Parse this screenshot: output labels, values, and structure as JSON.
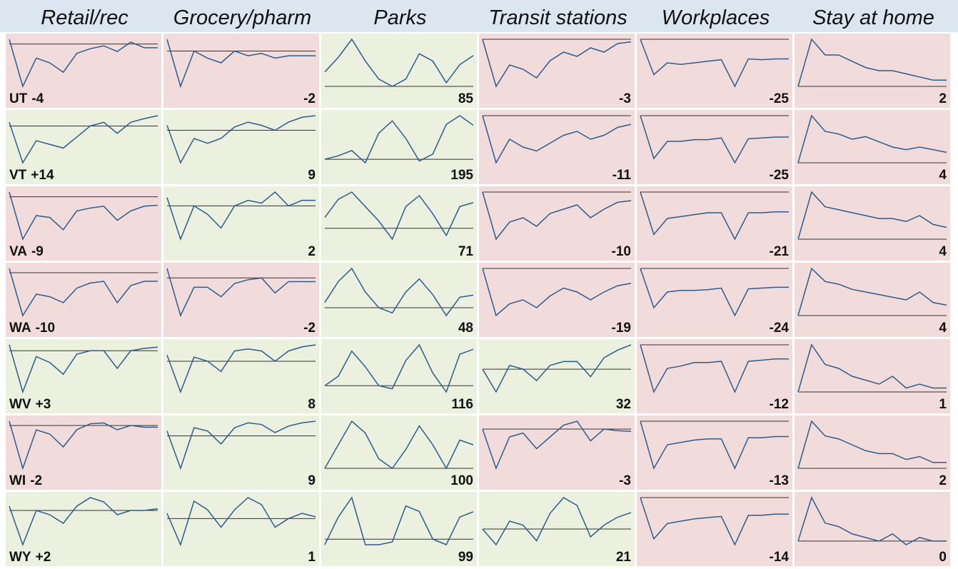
{
  "headers": [
    "Retail/rec",
    "Grocery/pharm",
    "Parks",
    "Transit stations",
    "Workplaces",
    "Stay at home"
  ],
  "rows": [
    {
      "state": "UT",
      "cells": [
        {
          "value": -4,
          "color": "#f2dcdb",
          "trend": [
            5,
            -45,
            -15,
            -20,
            -30,
            -10,
            -5,
            -2,
            -8,
            2,
            -4,
            -4
          ]
        },
        {
          "value": -2,
          "color": "#f2dcdb",
          "trend": [
            5,
            -15,
            0,
            -3,
            -5,
            0,
            -2,
            -1,
            -3,
            -2,
            -2,
            -2
          ]
        },
        {
          "value": 85,
          "color": "#ebf1de",
          "trend": [
            40,
            80,
            130,
            70,
            20,
            0,
            20,
            90,
            70,
            10,
            60,
            85
          ]
        },
        {
          "value": -3,
          "color": "#f2dcdb",
          "trend": [
            0,
            -55,
            -30,
            -35,
            -45,
            -25,
            -15,
            -20,
            -10,
            -15,
            -5,
            -3
          ]
        },
        {
          "value": -25,
          "color": "#f2dcdb",
          "trend": [
            0,
            -45,
            -30,
            -32,
            -30,
            -28,
            -26,
            -60,
            -25,
            -26,
            -25,
            -25
          ]
        },
        {
          "value": 2,
          "color": "#f2dcdb",
          "trend": [
            0,
            15,
            10,
            10,
            8,
            6,
            5,
            5,
            4,
            3,
            2,
            2
          ]
        }
      ]
    },
    {
      "state": "VT",
      "cells": [
        {
          "value": 14,
          "label": "+14",
          "color": "#ebf1de",
          "trend": [
            5,
            -50,
            -20,
            -25,
            -30,
            -15,
            0,
            5,
            -10,
            5,
            10,
            14
          ]
        },
        {
          "value": 9,
          "color": "#ebf1de",
          "trend": [
            3,
            -20,
            -5,
            -8,
            -5,
            2,
            5,
            3,
            0,
            5,
            8,
            9
          ]
        },
        {
          "value": 195,
          "color": "#ebf1de",
          "trend": [
            0,
            20,
            50,
            -20,
            150,
            220,
            120,
            -10,
            30,
            200,
            250,
            195
          ]
        },
        {
          "value": -11,
          "color": "#f2dcdb",
          "trend": [
            0,
            -60,
            -30,
            -40,
            -45,
            -35,
            -25,
            -20,
            -30,
            -25,
            -15,
            -11
          ]
        },
        {
          "value": -25,
          "color": "#f2dcdb",
          "trend": [
            0,
            -50,
            -30,
            -30,
            -28,
            -28,
            -26,
            -55,
            -27,
            -26,
            -25,
            -25
          ]
        },
        {
          "value": 4,
          "color": "#f2dcdb",
          "trend": [
            0,
            18,
            12,
            11,
            9,
            10,
            8,
            6,
            5,
            6,
            5,
            4
          ]
        }
      ]
    },
    {
      "state": "VA",
      "cells": [
        {
          "value": -9,
          "color": "#f2dcdb",
          "trend": [
            5,
            -45,
            -20,
            -22,
            -35,
            -15,
            -12,
            -10,
            -25,
            -15,
            -10,
            -9
          ]
        },
        {
          "value": 2,
          "color": "#ebf1de",
          "trend": [
            3,
            -12,
            0,
            -3,
            -8,
            0,
            2,
            1,
            5,
            0,
            2,
            2
          ]
        },
        {
          "value": 71,
          "color": "#ebf1de",
          "trend": [
            30,
            80,
            100,
            60,
            20,
            -30,
            60,
            90,
            40,
            -20,
            60,
            71
          ]
        },
        {
          "value": -10,
          "color": "#f2dcdb",
          "trend": [
            0,
            -55,
            -35,
            -30,
            -40,
            -25,
            -20,
            -15,
            -30,
            -20,
            -12,
            -10
          ]
        },
        {
          "value": -21,
          "color": "#f2dcdb",
          "trend": [
            0,
            -45,
            -28,
            -26,
            -24,
            -22,
            -22,
            -50,
            -22,
            -22,
            -21,
            -21
          ]
        },
        {
          "value": 4,
          "color": "#f2dcdb",
          "trend": [
            0,
            16,
            11,
            10,
            9,
            8,
            7,
            7,
            6,
            8,
            5,
            4
          ]
        }
      ]
    },
    {
      "state": "WA",
      "cells": [
        {
          "value": -10,
          "color": "#f2dcdb",
          "trend": [
            5,
            -50,
            -25,
            -28,
            -35,
            -18,
            -12,
            -10,
            -35,
            -15,
            -10,
            -10
          ]
        },
        {
          "value": -2,
          "color": "#f2dcdb",
          "trend": [
            5,
            -20,
            -5,
            -5,
            -10,
            -3,
            -1,
            0,
            -8,
            -2,
            -2,
            -2
          ]
        },
        {
          "value": 48,
          "color": "#ebf1de",
          "trend": [
            20,
            100,
            150,
            60,
            0,
            -20,
            60,
            110,
            50,
            -30,
            40,
            48
          ]
        },
        {
          "value": -19,
          "color": "#f2dcdb",
          "trend": [
            0,
            -60,
            -45,
            -40,
            -50,
            -35,
            -25,
            -30,
            -40,
            -30,
            -22,
            -19
          ]
        },
        {
          "value": -24,
          "color": "#f2dcdb",
          "trend": [
            0,
            -50,
            -30,
            -28,
            -28,
            -27,
            -25,
            -60,
            -26,
            -25,
            -24,
            -24
          ]
        },
        {
          "value": 4,
          "color": "#f2dcdb",
          "trend": [
            0,
            18,
            13,
            12,
            10,
            9,
            8,
            7,
            6,
            9,
            5,
            4
          ]
        }
      ]
    },
    {
      "state": "WV",
      "cells": [
        {
          "value": 3,
          "label": "+3",
          "color": "#ebf1de",
          "trend": [
            5,
            -35,
            -5,
            -10,
            -20,
            -3,
            0,
            0,
            -15,
            0,
            2,
            3
          ]
        },
        {
          "value": 8,
          "color": "#ebf1de",
          "trend": [
            3,
            -15,
            2,
            0,
            -5,
            5,
            6,
            5,
            0,
            5,
            7,
            8
          ]
        },
        {
          "value": 116,
          "color": "#ebf1de",
          "trend": [
            0,
            30,
            110,
            60,
            0,
            -10,
            80,
            130,
            40,
            -20,
            100,
            116
          ]
        },
        {
          "value": 32,
          "color": "#ebf1de",
          "trend": [
            0,
            -30,
            5,
            0,
            -15,
            5,
            10,
            10,
            -10,
            15,
            25,
            32
          ]
        },
        {
          "value": -12,
          "color": "#f2dcdb",
          "trend": [
            0,
            -40,
            -20,
            -18,
            -15,
            -15,
            -14,
            -40,
            -14,
            -13,
            -12,
            -12
          ]
        },
        {
          "value": 1,
          "color": "#f2dcdb",
          "trend": [
            0,
            12,
            7,
            6,
            4,
            3,
            2,
            4,
            1,
            2,
            1,
            1
          ]
        }
      ]
    },
    {
      "state": "WI",
      "cells": [
        {
          "value": -2,
          "color": "#f2dcdb",
          "trend": [
            5,
            -50,
            -5,
            -10,
            -25,
            -5,
            2,
            3,
            -5,
            0,
            -2,
            -2
          ]
        },
        {
          "value": 9,
          "color": "#ebf1de",
          "trend": [
            3,
            -20,
            5,
            3,
            -5,
            5,
            8,
            7,
            2,
            6,
            8,
            9
          ]
        },
        {
          "value": 100,
          "color": "#ebf1de",
          "trend": [
            0,
            100,
            200,
            150,
            40,
            0,
            80,
            180,
            100,
            0,
            120,
            100
          ]
        },
        {
          "value": -3,
          "color": "#f2dcdb",
          "trend": [
            0,
            -50,
            -10,
            -5,
            -25,
            -10,
            5,
            10,
            -15,
            0,
            -2,
            -3
          ]
        },
        {
          "value": -13,
          "color": "#f2dcdb",
          "trend": [
            0,
            -40,
            -20,
            -18,
            -16,
            -15,
            -15,
            -40,
            -14,
            -14,
            -13,
            -13
          ]
        },
        {
          "value": 2,
          "color": "#f2dcdb",
          "trend": [
            0,
            16,
            11,
            10,
            8,
            6,
            5,
            5,
            3,
            4,
            2,
            2
          ]
        }
      ]
    },
    {
      "state": "WY",
      "cells": [
        {
          "value": 2,
          "label": "+2",
          "color": "#ebf1de",
          "trend": [
            5,
            -40,
            0,
            -5,
            -15,
            5,
            15,
            10,
            -5,
            0,
            0,
            2
          ]
        },
        {
          "value": 1,
          "color": "#ebf1de",
          "trend": [
            3,
            -15,
            10,
            5,
            -5,
            5,
            12,
            8,
            -5,
            0,
            3,
            1
          ]
        },
        {
          "value": 99,
          "color": "#ebf1de",
          "trend": [
            -20,
            80,
            150,
            -20,
            -20,
            -10,
            120,
            100,
            0,
            -20,
            80,
            99
          ]
        },
        {
          "value": 21,
          "color": "#ebf1de",
          "trend": [
            0,
            -20,
            10,
            5,
            -15,
            20,
            40,
            30,
            -10,
            5,
            15,
            21
          ]
        },
        {
          "value": -14,
          "color": "#f2dcdb",
          "trend": [
            0,
            -35,
            -22,
            -20,
            -18,
            -17,
            -16,
            -40,
            -15,
            -15,
            -14,
            -14
          ]
        },
        {
          "value": 0,
          "color": "#f2dcdb",
          "trend": [
            0,
            12,
            5,
            4,
            2,
            1,
            0,
            2,
            -1,
            1,
            0,
            0
          ]
        }
      ]
    }
  ]
}
